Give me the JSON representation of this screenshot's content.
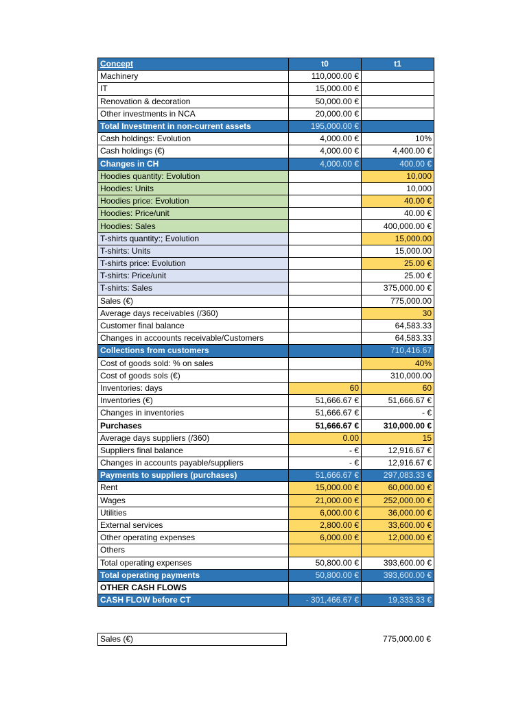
{
  "colors": {
    "header_blue": "#2E75B6",
    "green": "#C6E0B4",
    "light_blue": "#D9E1F2",
    "input_yellow": "#FFD966"
  },
  "table": {
    "headers": [
      "Concept",
      "t0",
      "t1"
    ],
    "rows": [
      {
        "label": "Machinery",
        "t0": "110,000.00 €",
        "t1": ""
      },
      {
        "label": "IT",
        "t0": "15,000.00 €",
        "t1": ""
      },
      {
        "label": "Renovation & decoration",
        "t0": "50,000.00 €",
        "t1": ""
      },
      {
        "label": "Other investments in NCA",
        "t0": "20,000.00 €",
        "t1": ""
      },
      {
        "label": "Total Investment in non-current assets",
        "t0": "195,000.00 €",
        "t1": "",
        "style": "total"
      },
      {
        "label": "Cash holdings: Evolution",
        "t0": "4,000.00 €",
        "t1": "10%"
      },
      {
        "label": "Cash holdings (€)",
        "t0": "4,000.00 €",
        "t1": "4,400.00 €"
      },
      {
        "label": "Changes in CH",
        "t0": "4,000.00 €",
        "t1": "400.00 €",
        "style": "total"
      },
      {
        "label": "Hoodies quantity: Evolution",
        "t0": "",
        "t1": "10,000",
        "style": "green",
        "t1_input": true
      },
      {
        "label": "Hoodies: Units",
        "t0": "",
        "t1": "10,000",
        "style": "green"
      },
      {
        "label": "Hoodies price: Evolution",
        "t0": "",
        "t1": "40.00 €",
        "style": "green",
        "t1_input": true
      },
      {
        "label": "Hoodies: Price/unit",
        "t0": "",
        "t1": "40.00 €",
        "style": "green"
      },
      {
        "label": "Hoodies: Sales",
        "t0": "",
        "t1": "400,000.00 €",
        "style": "green"
      },
      {
        "label": "T-shirts quantity:; Evolution",
        "t0": "",
        "t1": "15,000.00",
        "style": "lblue",
        "t1_input": true
      },
      {
        "label": "T-shirts: Units",
        "t0": "",
        "t1": "15,000.00",
        "style": "lblue"
      },
      {
        "label": "T-shirts price: Evolution",
        "t0": "",
        "t1": "25.00 €",
        "style": "lblue",
        "t1_input": true
      },
      {
        "label": "T-shirts: Price/unit",
        "t0": "",
        "t1": "25.00 €",
        "style": "lblue"
      },
      {
        "label": "T-shirts: Sales",
        "t0": "",
        "t1": "375,000.00 €",
        "style": "lblue"
      },
      {
        "label": "Sales (€)",
        "t0": "",
        "t1": "775,000.00"
      },
      {
        "label": "Average days receivables (/360)",
        "t0": "",
        "t1": "30",
        "t1_input": true
      },
      {
        "label": "Customer final balance",
        "t0": "",
        "t1": "64,583.33"
      },
      {
        "label": "Changes in accoounts receivable/Customers",
        "t0": "",
        "t1": "64,583.33"
      },
      {
        "label": "Collections from customers",
        "t0": "",
        "t1": "710,416.67",
        "style": "total"
      },
      {
        "label": "Cost of goods sold: % on sales",
        "t0": "",
        "t1": "40%",
        "t1_input": true
      },
      {
        "label": "Cost of goods sols (€)",
        "t0": "",
        "t1": "310,000.00"
      },
      {
        "label": "Inventories: days",
        "t0": "60",
        "t1": "60",
        "t0_input": true,
        "t1_input": true
      },
      {
        "label": "Inventories (€)",
        "t0": "51,666.67 €",
        "t1": "51,666.67 €"
      },
      {
        "label": "Changes in inventories",
        "t0": "51,666.67 €",
        "t1": "-   €"
      },
      {
        "label": "Purchases",
        "t0": "51,666.67 €",
        "t1": "310,000.00 €",
        "style": "bold"
      },
      {
        "label": "Average days suppliers (/360)",
        "t0": "0.00",
        "t1": "15",
        "t0_input": true,
        "t1_input": true
      },
      {
        "label": "Suppliers final balance",
        "t0": "-   €",
        "t1": "12,916.67 €"
      },
      {
        "label": "Changes in accounts payable/suppliers",
        "t0": "-   €",
        "t1": "12,916.67 €"
      },
      {
        "label": "Payments to suppliers (purchases)",
        "t0": "51,666.67 €",
        "t1": "297,083.33 €",
        "style": "total"
      },
      {
        "label": "Rent",
        "t0": "15,000.00 €",
        "t1": "60,000.00 €",
        "t0_input": true,
        "t1_input": true
      },
      {
        "label": "Wages",
        "t0": "21,000.00 €",
        "t1": "252,000.00 €",
        "t0_input": true,
        "t1_input": true
      },
      {
        "label": "Utilities",
        "t0": "6,000.00 €",
        "t1": "36,000.00 €",
        "t0_input": true,
        "t1_input": true
      },
      {
        "label": "External services",
        "t0": "2,800.00 €",
        "t1": "33,600.00 €",
        "t0_input": true,
        "t1_input": true
      },
      {
        "label": "Other operating expenses",
        "t0": "6,000.00 €",
        "t1": "12,000.00 €",
        "t0_input": true,
        "t1_input": true
      },
      {
        "label": "Others",
        "t0": "",
        "t1": "",
        "t0_input": true,
        "t1_input": true
      },
      {
        "label": "Total operating expenses",
        "t0": "50,800.00 €",
        "t1": "393,600.00 €"
      },
      {
        "label": "Total operating payments",
        "t0": "50,800.00 €",
        "t1": "393,600.00 €",
        "style": "total"
      },
      {
        "label": "OTHER CASH FLOWS",
        "t0": "",
        "t1": "",
        "style": "bold"
      },
      {
        "label": "CASH FLOW before CT",
        "t0": "-     301,466.67 €",
        "t1": "19,333.33 €",
        "style": "total"
      }
    ]
  },
  "summary": {
    "label": "Sales (€)",
    "value": "775,000.00 €"
  }
}
